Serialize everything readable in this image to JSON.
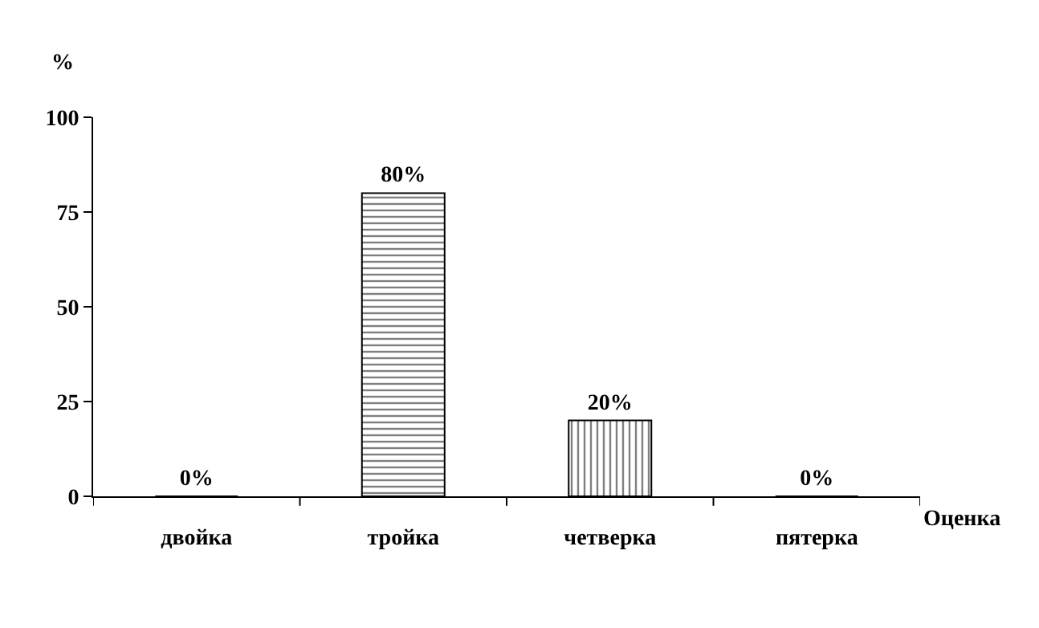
{
  "chart_data": {
    "type": "bar",
    "xlabel": "Оценка",
    "ylabel": "%",
    "categories": [
      "двойка",
      "тройка",
      "четверка",
      "пятерка"
    ],
    "values": [
      0,
      80,
      20,
      0
    ],
    "value_labels": [
      "0%",
      "80%",
      "20%",
      "0%"
    ],
    "color": "#000000",
    "ylim": [
      0,
      100
    ],
    "yticks": [
      0,
      25,
      50,
      75,
      100
    ],
    "legend": false
  }
}
